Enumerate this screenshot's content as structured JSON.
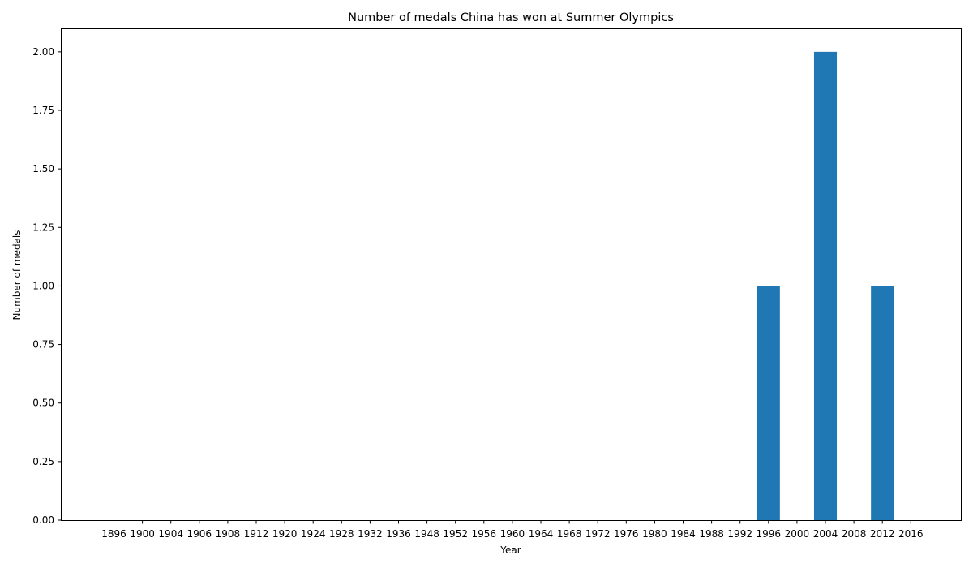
{
  "chart_data": {
    "type": "bar",
    "title": "Number of medals China has won at Summer Olympics",
    "xlabel": "Year",
    "ylabel": "Number of medals",
    "categories": [
      "1896",
      "1900",
      "1904",
      "1906",
      "1908",
      "1912",
      "1920",
      "1924",
      "1928",
      "1932",
      "1936",
      "1948",
      "1952",
      "1956",
      "1960",
      "1964",
      "1968",
      "1972",
      "1976",
      "1980",
      "1984",
      "1988",
      "1992",
      "1996",
      "2000",
      "2004",
      "2008",
      "2012",
      "2016"
    ],
    "values": [
      0,
      0,
      0,
      0,
      0,
      0,
      0,
      0,
      0,
      0,
      0,
      0,
      0,
      0,
      0,
      0,
      0,
      0,
      0,
      0,
      0,
      0,
      0,
      1,
      0,
      2,
      0,
      1,
      0
    ],
    "ylim": [
      0,
      2.1
    ],
    "yticks": [
      "0.00",
      "0.25",
      "0.50",
      "0.75",
      "1.00",
      "1.25",
      "1.50",
      "1.75",
      "2.00"
    ],
    "grid": false,
    "bar_color": "#1f77b4"
  }
}
